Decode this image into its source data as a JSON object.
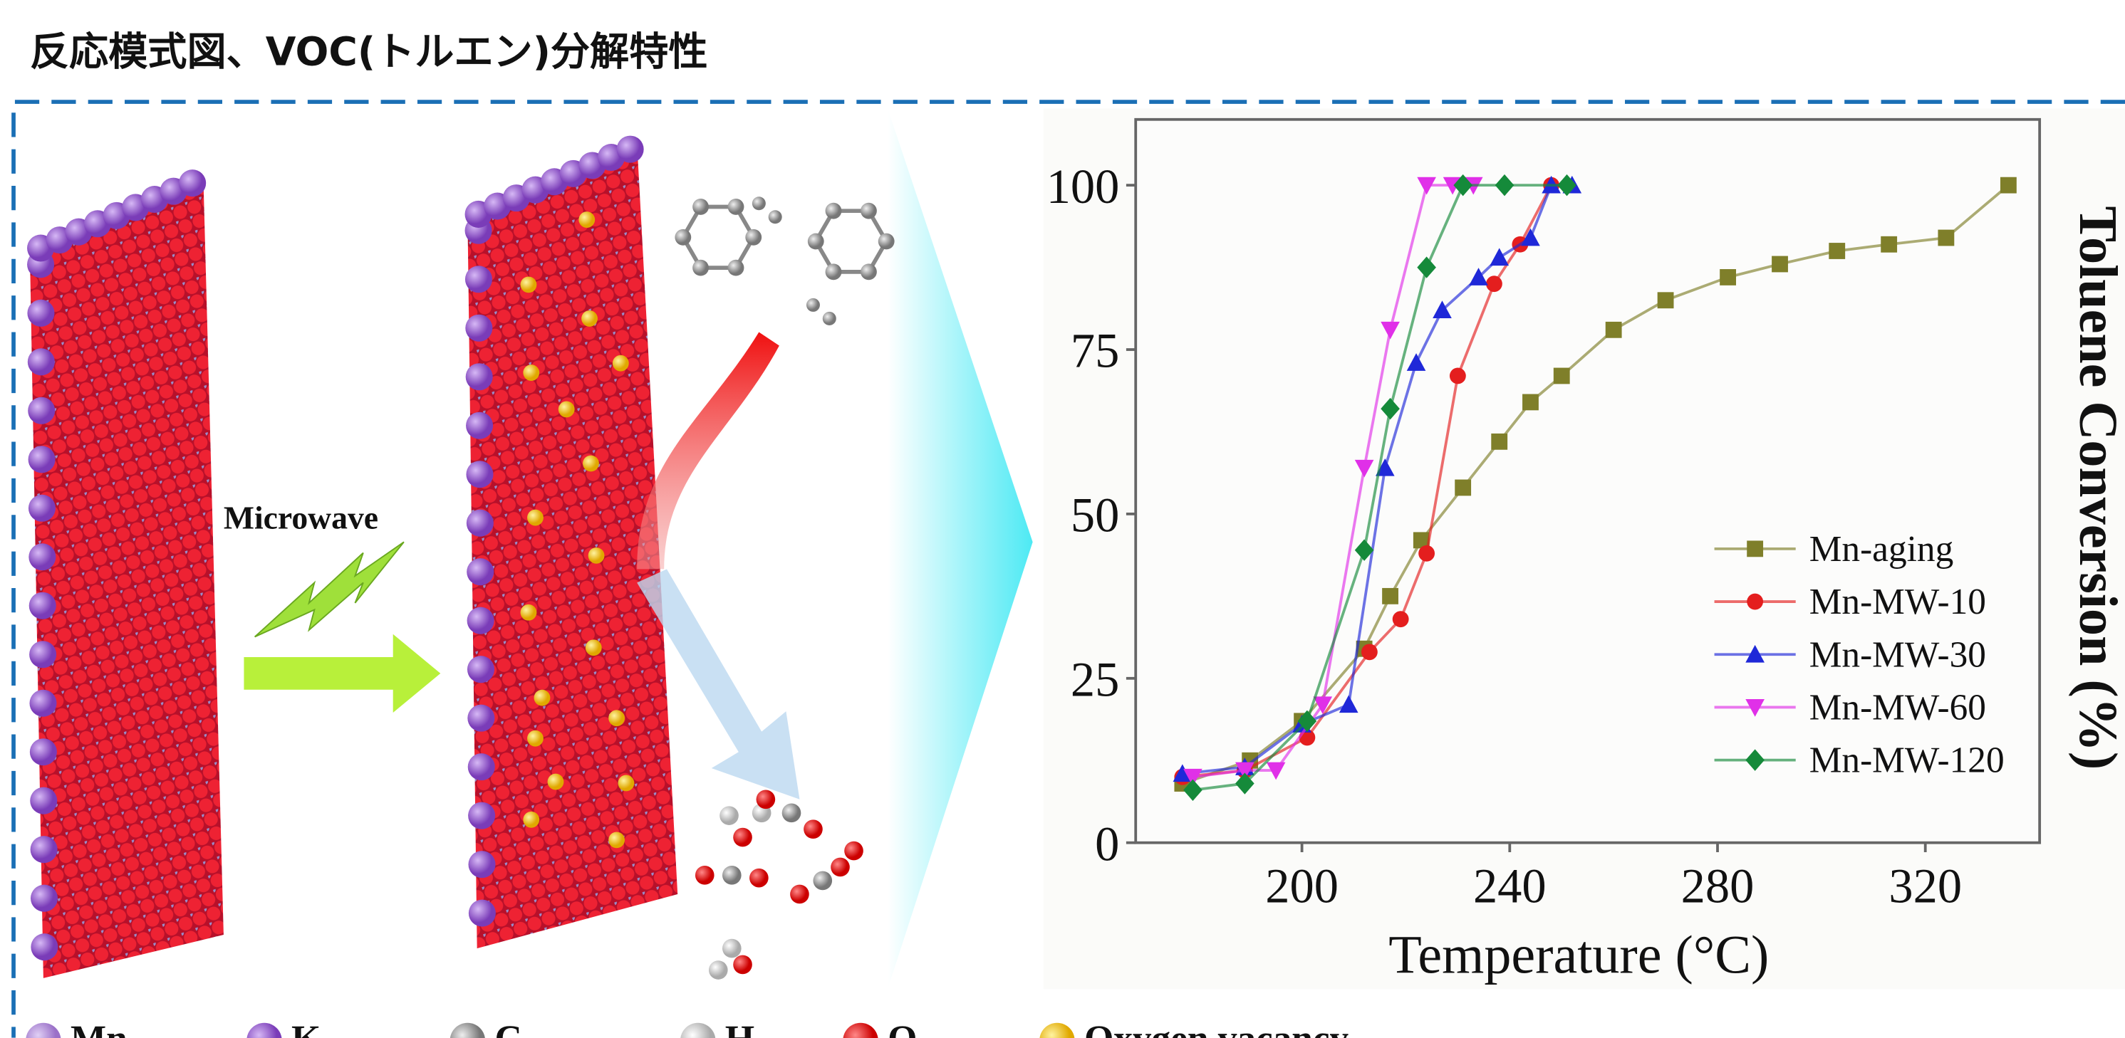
{
  "header": {
    "title": "反応模式図、VOC(トルエン)分解特性"
  },
  "illustration": {
    "arrow_label": "Microwave",
    "legend": [
      "Mn",
      "K",
      "C",
      "H",
      "O",
      "Oxygen vacancy"
    ]
  },
  "chart_data": {
    "type": "line",
    "xlabel": "Temperature (°C)",
    "ylabel": "Toluene Conversion (%)",
    "xlim": [
      168,
      342
    ],
    "ylim": [
      0,
      110
    ],
    "xticks": [
      200,
      240,
      280,
      320
    ],
    "yticks": [
      0,
      25,
      50,
      75,
      100
    ],
    "legend_position": "lower right",
    "series": [
      {
        "name": "Mn-aging",
        "color": "#7f7f2a",
        "marker": "square",
        "x": [
          177,
          190,
          200,
          212,
          217,
          223,
          231,
          238,
          244,
          250,
          260,
          270,
          282,
          292,
          303,
          313,
          324,
          336
        ],
        "values": [
          9,
          12.5,
          18.5,
          29.5,
          37.5,
          46,
          54,
          61,
          67,
          71,
          78,
          82.5,
          86,
          88,
          90,
          91,
          92,
          100
        ]
      },
      {
        "name": "Mn-MW-10",
        "color": "#e41e1e",
        "marker": "circle",
        "x": [
          177,
          189,
          201,
          213,
          219,
          224,
          230,
          237,
          242,
          248
        ],
        "values": [
          10,
          11,
          16,
          29,
          34,
          44,
          71,
          85,
          91,
          100
        ]
      },
      {
        "name": "Mn-MW-30",
        "color": "#1f28d8",
        "marker": "triangle-up",
        "x": [
          177,
          189,
          200,
          209,
          216,
          222,
          227,
          234,
          238,
          244,
          248,
          252
        ],
        "values": [
          10.5,
          11.5,
          18,
          21,
          57,
          73,
          81,
          86,
          89,
          92,
          100,
          100
        ]
      },
      {
        "name": "Mn-MW-60",
        "color": "#e030e8",
        "marker": "triangle-down",
        "x": [
          179,
          189,
          195,
          204,
          212,
          217,
          224,
          229,
          233
        ],
        "values": [
          10,
          11,
          11,
          21,
          57,
          78,
          100,
          100,
          100
        ]
      },
      {
        "name": "Mn-MW-120",
        "color": "#158a3a",
        "marker": "diamond",
        "x": [
          179,
          189,
          201,
          212,
          217,
          224,
          231,
          239,
          251
        ],
        "values": [
          8,
          9,
          18.5,
          44.5,
          66,
          87.5,
          100,
          100,
          100
        ]
      }
    ]
  }
}
